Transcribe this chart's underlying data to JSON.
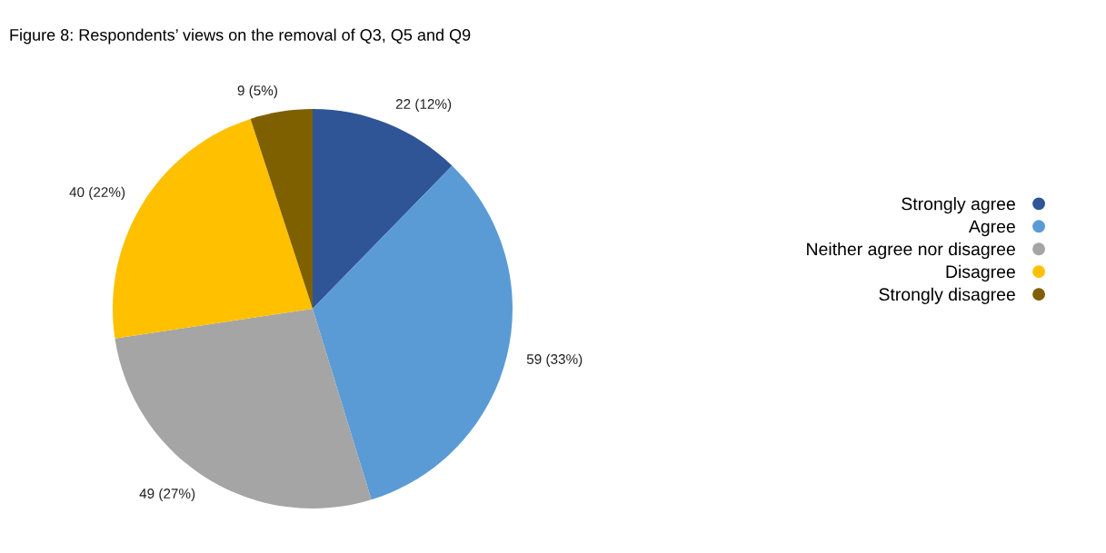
{
  "chart_data": {
    "type": "pie",
    "title": "Figure 8: Respondents’ views on the removal of Q3, Q5 and Q9",
    "categories": [
      "Strongly agree",
      "Agree",
      "Neither agree nor disagree",
      "Disagree",
      "Strongly disagree"
    ],
    "values": [
      22,
      59,
      49,
      40,
      9
    ],
    "value_labels": [
      "22 (12%)",
      "59 (33%)",
      "49 (27%)",
      "40 (22%)",
      "9 (5%)"
    ],
    "colors": [
      "#2f5597",
      "#5b9bd5",
      "#a5a5a5",
      "#ffc000",
      "#7f6000"
    ],
    "legend": "right"
  }
}
